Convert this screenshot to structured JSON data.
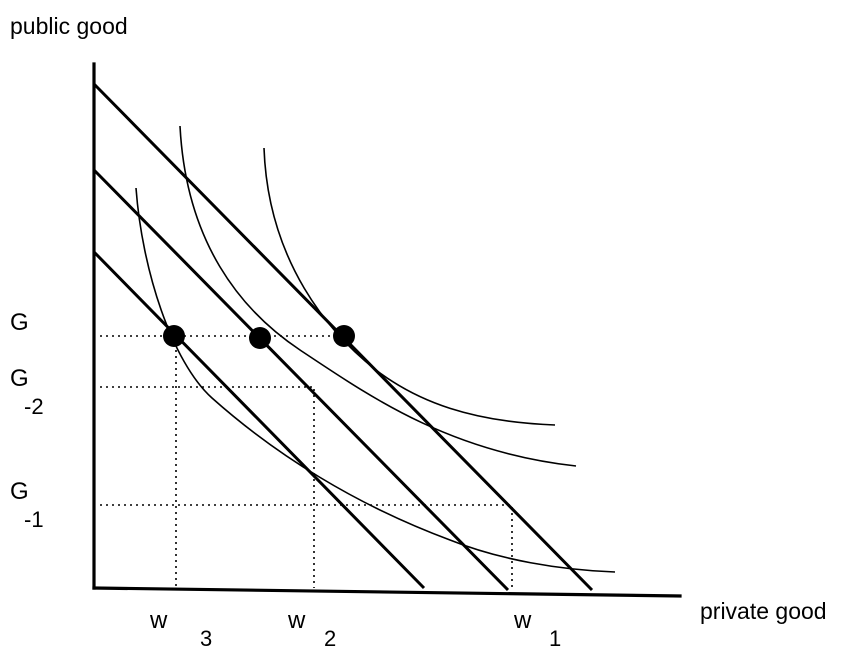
{
  "axes": {
    "y_title": "public good",
    "x_title": "private good"
  },
  "y_labels": {
    "g": {
      "main": "G",
      "sub": ""
    },
    "g_minus_2": {
      "main": "G",
      "sub": "-2"
    },
    "g_minus_1": {
      "main": "G",
      "sub": "-1"
    }
  },
  "x_labels": {
    "w3": {
      "main": "w",
      "sub": "3"
    },
    "w2": {
      "main": "w",
      "sub": "2"
    },
    "w1": {
      "main": "w",
      "sub": "1"
    }
  },
  "colors": {
    "ink": "#000000",
    "background": "#ffffff"
  }
}
